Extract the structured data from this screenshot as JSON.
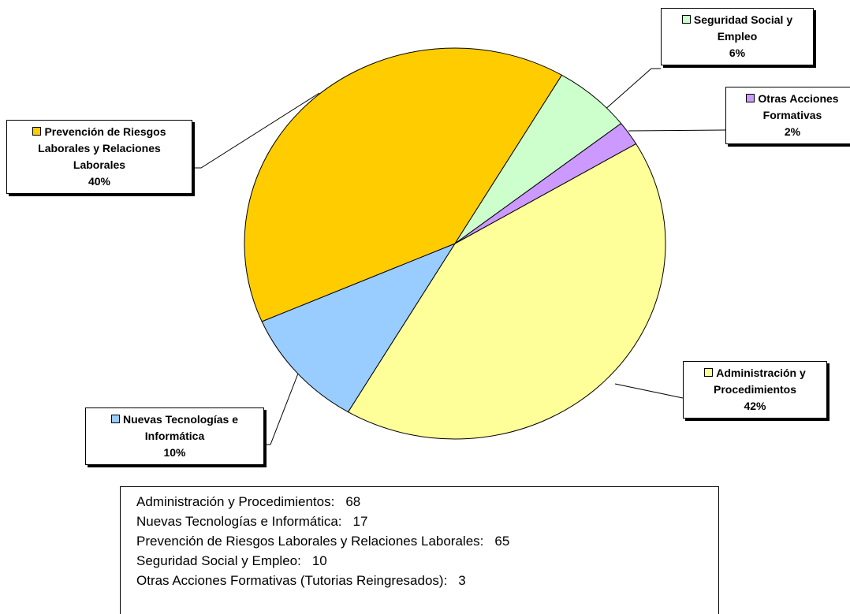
{
  "chart_data": {
    "type": "pie",
    "categories": [
      "Administración y Procedimientos",
      "Nuevas Tecnologías e Informática",
      "Prevención de Riesgos Laborales y Relaciones Laborales",
      "Seguridad Social y Empleo",
      "Otras Acciones Formativas"
    ],
    "values": [
      42,
      10,
      40,
      6,
      2
    ],
    "value_labels": [
      "42%",
      "10%",
      "40%",
      "6%",
      "2%"
    ],
    "colors": [
      "#FFFF99",
      "#99CCFF",
      "#FFCC00",
      "#CCFFCC",
      "#CC99FF"
    ],
    "notes": [
      {
        "label": "Administración y Procedimientos:",
        "value": 68
      },
      {
        "label": "Nuevas Tecnologías e Informática:",
        "value": 17
      },
      {
        "label": "Prevención de Riesgos Laborales y Relaciones Laborales:",
        "value": 65
      },
      {
        "label": "Seguridad Social y Empleo:",
        "value": 10
      },
      {
        "label": "Otras Acciones Formativas (Tutorias Reingresados):",
        "value": 3
      }
    ]
  }
}
